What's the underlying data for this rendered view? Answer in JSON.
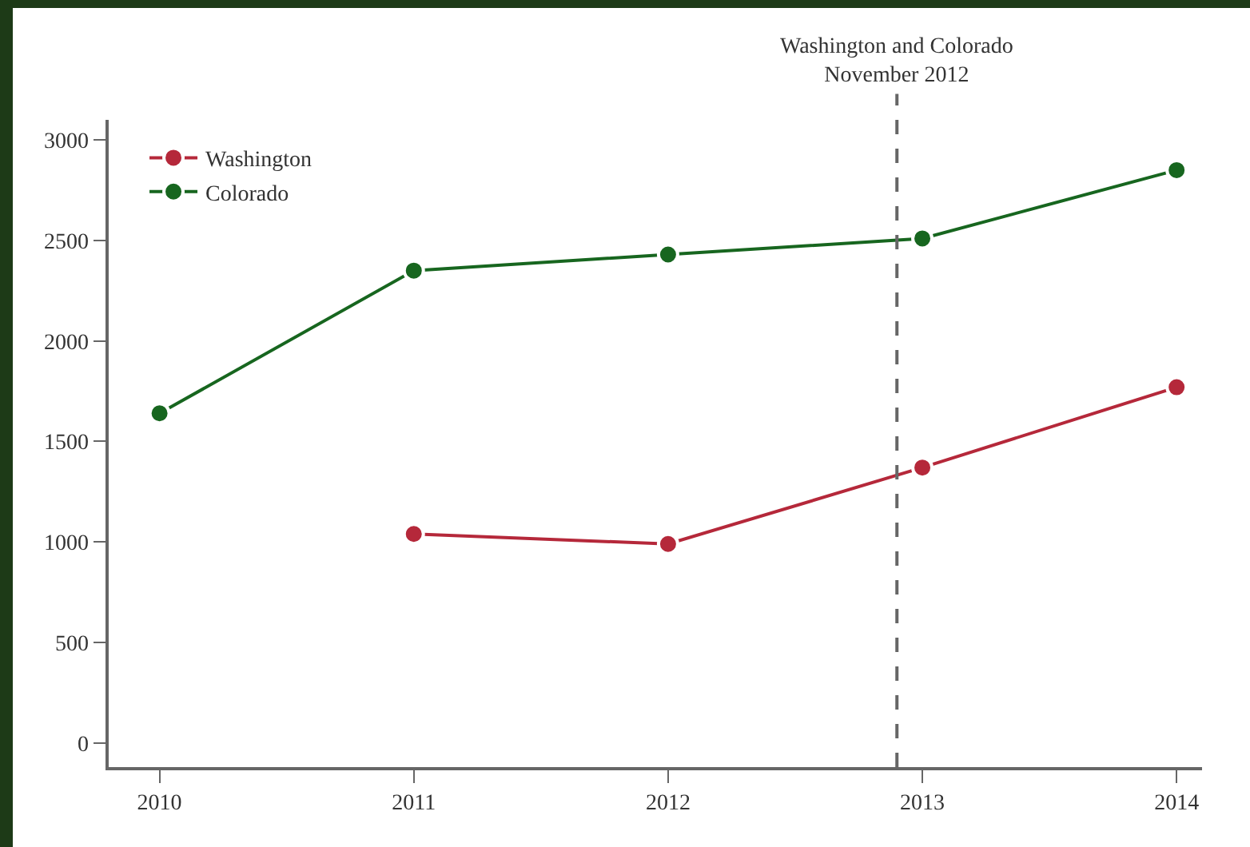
{
  "chart_data": {
    "type": "line",
    "x": [
      2010,
      2011,
      2012,
      2013,
      2014
    ],
    "series": [
      {
        "name": "Washington",
        "color": "#b5283a",
        "values": [
          null,
          1040,
          990,
          1370,
          1770
        ]
      },
      {
        "name": "Colorado",
        "color": "#17661f",
        "values": [
          1640,
          2350,
          2430,
          2510,
          2850
        ]
      }
    ],
    "xlim": [
      2009.8,
      2014.1
    ],
    "xticks": [
      2010,
      2011,
      2012,
      2013,
      2014
    ],
    "ylim": [
      -120,
      3100
    ],
    "yticks": [
      0,
      500,
      1000,
      1500,
      2000,
      2500,
      3000
    ],
    "ref_lines": [
      {
        "axis": "x",
        "value": 2012.9,
        "label": "Washington and Colorado\nNovember 2012",
        "color": "#666666",
        "line_style": "dashed"
      }
    ],
    "grid": false,
    "legend": "top left",
    "marker": "circle",
    "line_style": "solid"
  }
}
